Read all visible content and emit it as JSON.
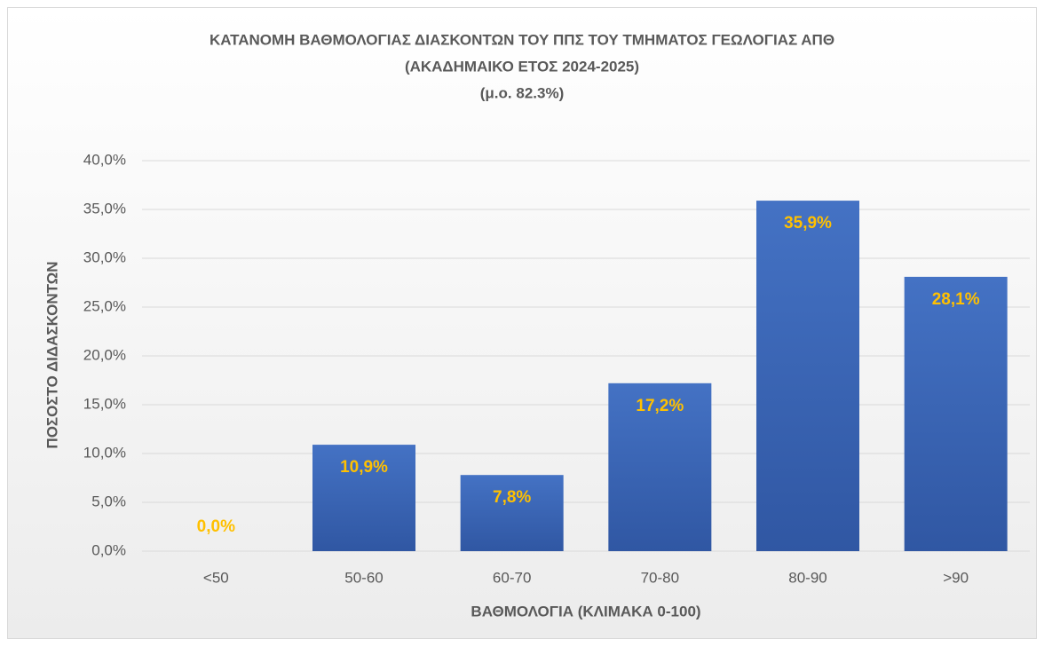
{
  "chart_data": {
    "type": "bar",
    "title": "ΚΑΤΑΝΟΜΗ ΒΑΘΜΟΛΟΓΙΑΣ ΔΙΑΣΚΟΝΤΩΝ ΤΟΥ ΠΠΣ ΤΟΥ ΤΜΗΜΑΤΟΣ ΓΕΩΛΟΓΙΑΣ ΑΠΘ",
    "subtitle": [
      "(ΑΚΑΔΗΜΑΙΚΟ ΕΤΟΣ 2024-2025)",
      "(μ.ο. 82.3%)"
    ],
    "x_label": "ΒΑΘΜΟΛΟΓΙΑ  (ΚΛΙΜΑΚΑ 0-100)",
    "y_label": "ΠΟΣΟΣΤΟ ΔΙΔΑΣΚΟΝΤΩΝ",
    "categories": [
      "<50",
      "50-60",
      "60-70",
      "70-80",
      "80-90",
      ">90"
    ],
    "values": [
      0,
      10.9,
      7.8,
      17.2,
      35.9,
      28.1
    ],
    "value_labels": [
      "0,0%",
      "10,9%",
      "7,8%",
      "17,2%",
      "35,9%",
      "28,1%"
    ],
    "color": "#4472c4",
    "label_color": "#ffc000",
    "ylim": [
      0,
      40
    ],
    "yticks": [
      {
        "value": 0,
        "label": "0,0%"
      },
      {
        "value": 5,
        "label": "5,0%"
      },
      {
        "value": 10,
        "label": "10,0%"
      },
      {
        "value": 15,
        "label": "15,0%"
      },
      {
        "value": 20,
        "label": "20,0%"
      },
      {
        "value": 25,
        "label": "25,0%"
      },
      {
        "value": 30,
        "label": "30,0%"
      },
      {
        "value": 35,
        "label": "35,0%"
      },
      {
        "value": 40,
        "label": "40,0%"
      }
    ],
    "grid": true
  }
}
